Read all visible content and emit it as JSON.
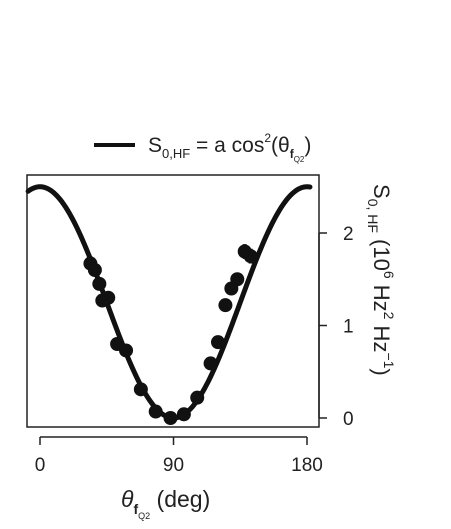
{
  "chart_data": {
    "type": "scatter",
    "legend": {
      "position": "top",
      "entry": {
        "main": "S",
        "main_sub": "0,HF",
        "eq": " = a cos",
        "sup": "2",
        "open": "(θ",
        "theta_sub": "f",
        "theta_subsub": "Q2",
        "close": ")"
      }
    },
    "xaxis": {
      "label_main": "θ",
      "label_sub": "f",
      "label_subsub": "Q2",
      "label_unit": " (deg)",
      "ticks": [
        0,
        90,
        180
      ],
      "tick_labels": [
        "0",
        "90",
        "180"
      ],
      "range": [
        -8,
        183
      ]
    },
    "yaxis": {
      "position": "right",
      "label": "S0, HF (10^6 Hz^2 Hz^-1)",
      "label_parts": {
        "s": "S",
        "s_sub": "0, HF",
        "open": " (10",
        "exp6": "6",
        "hz": " Hz",
        "exp2": "2",
        "hz2": " Hz",
        "expm1": "−1",
        "close": ")"
      },
      "ticks": [
        0,
        1,
        2
      ],
      "tick_labels": [
        "0",
        "1",
        "2"
      ],
      "range": [
        -0.1,
        2.65
      ]
    },
    "grid": false,
    "fit": {
      "name": "S0,HF = a cos²(θfQ2)",
      "amplitude": 2.5,
      "center": 90,
      "x_range": [
        -8,
        182
      ]
    },
    "points": [
      {
        "x": 34,
        "y": 1.67,
        "yerr": 0.08
      },
      {
        "x": 37,
        "y": 1.6,
        "yerr": 0.07
      },
      {
        "x": 40,
        "y": 1.45,
        "yerr": 0.07
      },
      {
        "x": 42,
        "y": 1.27,
        "yerr": 0.06
      },
      {
        "x": 46,
        "y": 1.3,
        "yerr": 0.06
      },
      {
        "x": 52,
        "y": 0.8,
        "yerr": 0.04
      },
      {
        "x": 58,
        "y": 0.73,
        "yerr": 0.04
      },
      {
        "x": 68,
        "y": 0.31,
        "yerr": 0.03
      },
      {
        "x": 78,
        "y": 0.07,
        "yerr": 0.02
      },
      {
        "x": 88,
        "y": 0.0,
        "yerr": 0.02
      },
      {
        "x": 97,
        "y": 0.04,
        "yerr": 0.02
      },
      {
        "x": 106,
        "y": 0.22,
        "yerr": 0.03
      },
      {
        "x": 115,
        "y": 0.59,
        "yerr": 0.03
      },
      {
        "x": 120,
        "y": 0.82,
        "yerr": 0.04
      },
      {
        "x": 125,
        "y": 1.22,
        "yerr": 0.05
      },
      {
        "x": 129,
        "y": 1.4,
        "yerr": 0.06
      },
      {
        "x": 133,
        "y": 1.5,
        "yerr": 0.06
      },
      {
        "x": 138,
        "y": 1.8,
        "yerr": 0.08
      },
      {
        "x": 142,
        "y": 1.75,
        "yerr": 0.08
      }
    ],
    "colors": {
      "line": "#111111",
      "points": "#111111",
      "frame": "#222222"
    }
  }
}
